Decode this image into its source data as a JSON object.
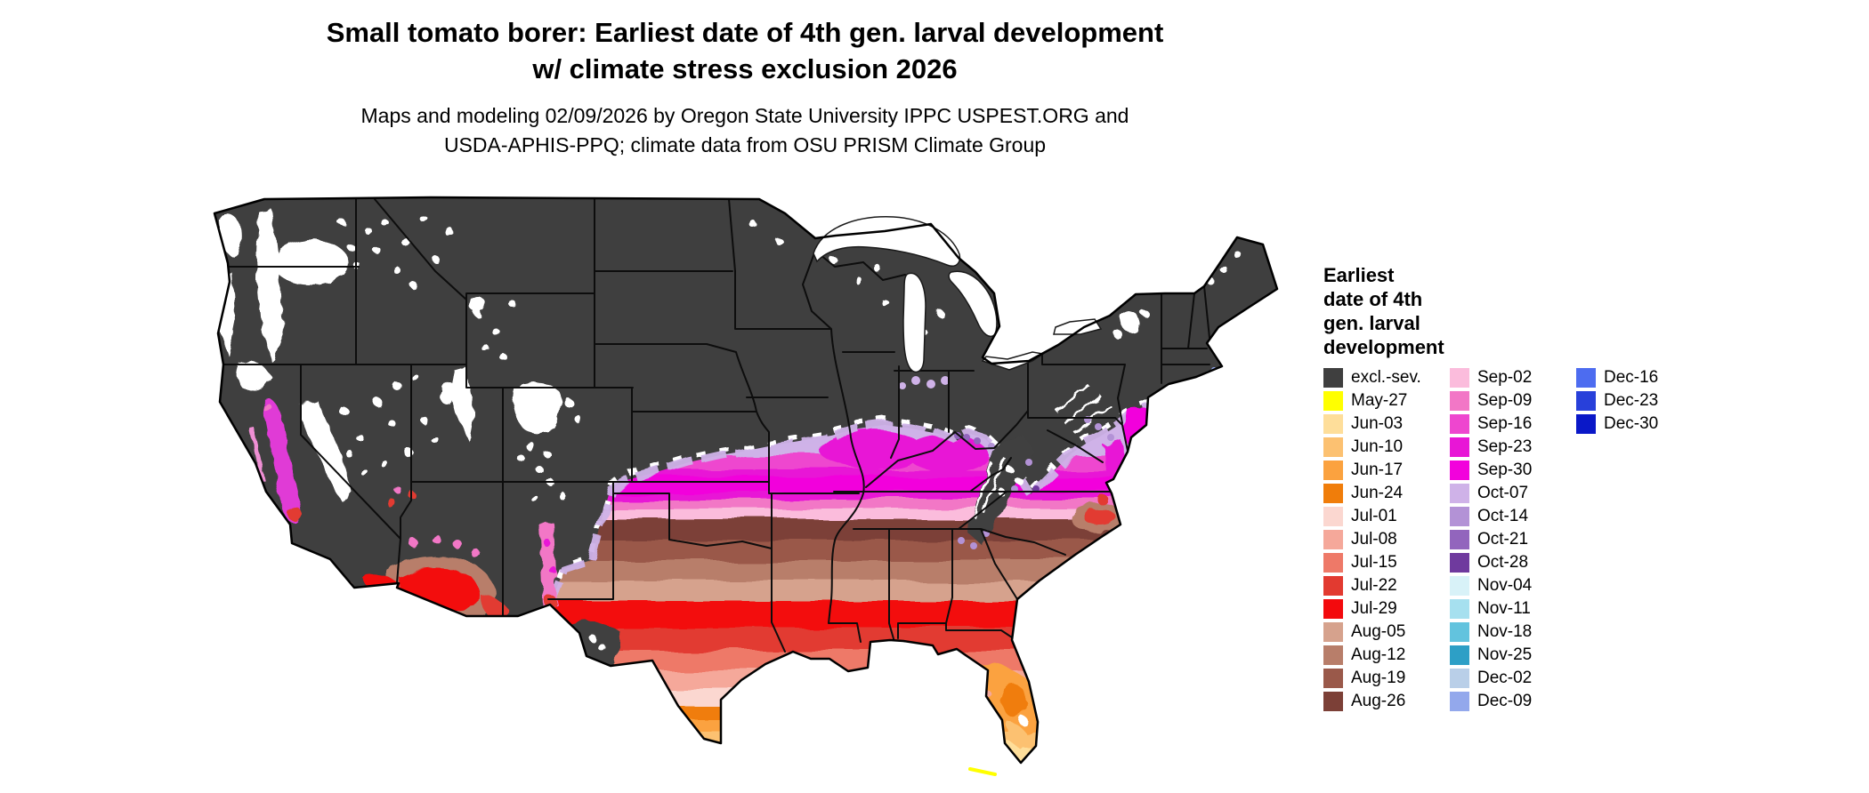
{
  "title": {
    "line1": "Small tomato borer: Earliest date of 4th gen. larval development",
    "line2": "w/ climate stress exclusion 2026"
  },
  "subtitle": {
    "line1": "Maps and modeling 02/09/2026 by Oregon State University IPPC USPEST.ORG and",
    "line2": "USDA-APHIS-PPQ; climate data from OSU PRISM Climate Group"
  },
  "legend": {
    "title": "Earliest\ndate of 4th\ngen. larval\ndevelopment",
    "columns": [
      [
        {
          "label": "excl.-sev.",
          "color": "#3f3f3f"
        },
        {
          "label": "May-27",
          "color": "#ffff00"
        },
        {
          "label": "Jun-03",
          "color": "#fede9a"
        },
        {
          "label": "Jun-10",
          "color": "#fcc171"
        },
        {
          "label": "Jun-17",
          "color": "#fba23f"
        },
        {
          "label": "Jun-24",
          "color": "#f07d0a"
        },
        {
          "label": "Jul-01",
          "color": "#fbd7d0"
        },
        {
          "label": "Jul-08",
          "color": "#f5a89a"
        },
        {
          "label": "Jul-15",
          "color": "#ee7968"
        },
        {
          "label": "Jul-22",
          "color": "#e23a30"
        },
        {
          "label": "Jul-29",
          "color": "#f30a0d"
        },
        {
          "label": "Aug-05",
          "color": "#d6a28d"
        },
        {
          "label": "Aug-12",
          "color": "#b87e6a"
        },
        {
          "label": "Aug-19",
          "color": "#9a594a"
        },
        {
          "label": "Aug-26",
          "color": "#7c4037"
        }
      ],
      [
        {
          "label": "Sep-02",
          "color": "#fbbcdc"
        },
        {
          "label": "Sep-09",
          "color": "#f277c6"
        },
        {
          "label": "Sep-16",
          "color": "#ee46cf"
        },
        {
          "label": "Sep-23",
          "color": "#e816d6"
        },
        {
          "label": "Sep-30",
          "color": "#f202dc"
        },
        {
          "label": "Oct-07",
          "color": "#cfb2e8"
        },
        {
          "label": "Oct-14",
          "color": "#b392d6"
        },
        {
          "label": "Oct-21",
          "color": "#9265bd"
        },
        {
          "label": "Oct-28",
          "color": "#6f3a9e"
        },
        {
          "label": "Nov-04",
          "color": "#d8f2f8"
        },
        {
          "label": "Nov-11",
          "color": "#a6e0ef"
        },
        {
          "label": "Nov-18",
          "color": "#62c3de"
        },
        {
          "label": "Nov-25",
          "color": "#2d9fc6"
        },
        {
          "label": "Dec-02",
          "color": "#b9cfe8"
        },
        {
          "label": "Dec-09",
          "color": "#93a8ec"
        }
      ],
      [
        {
          "label": "Dec-16",
          "color": "#4d6cf0"
        },
        {
          "label": "Dec-23",
          "color": "#2840da"
        },
        {
          "label": "Dec-30",
          "color": "#0a18c8"
        }
      ]
    ]
  }
}
